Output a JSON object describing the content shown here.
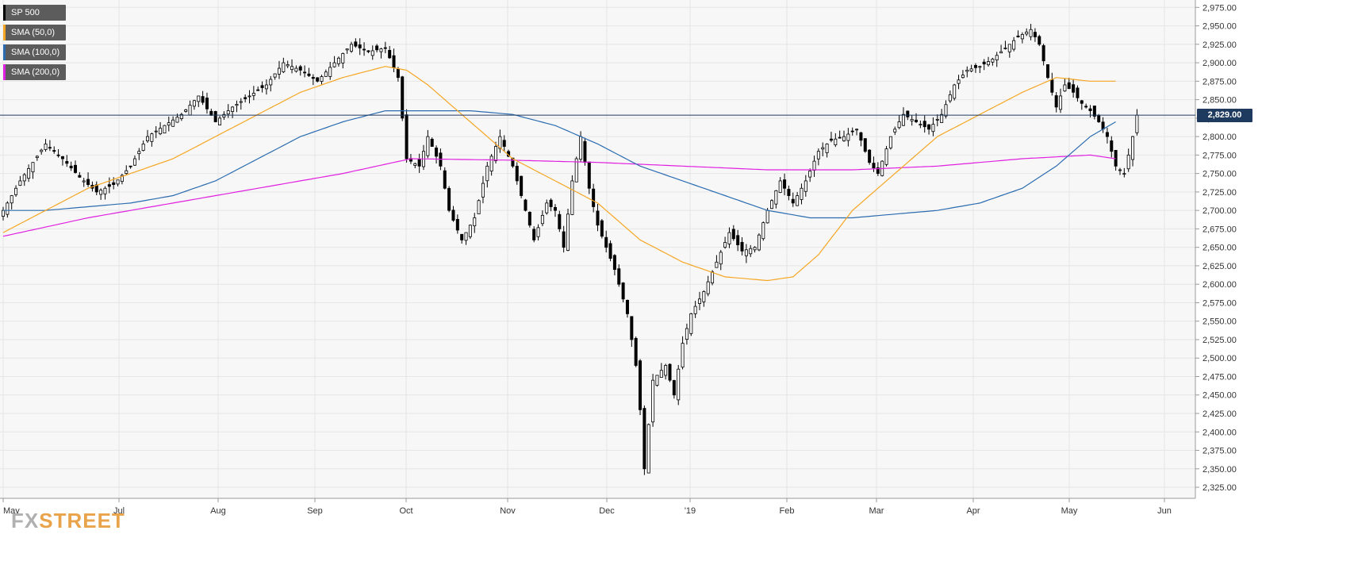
{
  "logo": {
    "fx": "FX",
    "street": "STREET"
  },
  "legend": [
    {
      "label": "SP 500",
      "color": "#000000"
    },
    {
      "label": "SMA (50,0)",
      "color": "#f5a623"
    },
    {
      "label": "SMA (100,0)",
      "color": "#2b6cb0"
    },
    {
      "label": "SMA (200,0)",
      "color": "#e020e0"
    }
  ],
  "current_price": {
    "label": "2,829.00",
    "value": 2829
  },
  "chart_data": {
    "type": "candlestick",
    "instrument": "SP 500",
    "timeframe": "daily",
    "y_ticks": [
      2325,
      2350,
      2375,
      2400,
      2425,
      2450,
      2475,
      2500,
      2525,
      2550,
      2575,
      2600,
      2625,
      2650,
      2675,
      2700,
      2725,
      2750,
      2775,
      2800,
      2825,
      2850,
      2875,
      2900,
      2925,
      2950,
      2975
    ],
    "y_tick_labels": [
      "2,325.00",
      "2,350.00",
      "2,375.00",
      "2,400.00",
      "2,425.00",
      "2,450.00",
      "2,475.00",
      "2,500.00",
      "2,525.00",
      "2,550.00",
      "2,575.00",
      "2,600.00",
      "2,625.00",
      "2,650.00",
      "2,675.00",
      "2,700.00",
      "2,725.00",
      "2,750.00",
      "2,775.00",
      "2,800.00",
      "2,825.00",
      "2,850.00",
      "2,875.00",
      "2,900.00",
      "2,925.00",
      "2,950.00",
      "2,975.00"
    ],
    "ylim": [
      2310,
      2985
    ],
    "x_ticks": [
      "May",
      "Jul",
      "Aug",
      "Sep",
      "Oct",
      "Nov",
      "Dec",
      "'19",
      "Feb",
      "Mar",
      "Apr",
      "May",
      "Jun"
    ],
    "grid": true,
    "series_close_path": [
      [
        0,
        2700
      ],
      [
        4,
        2740
      ],
      [
        10,
        2790
      ],
      [
        14,
        2770
      ],
      [
        18,
        2745
      ],
      [
        22,
        2725
      ],
      [
        26,
        2735
      ],
      [
        30,
        2760
      ],
      [
        34,
        2800
      ],
      [
        38,
        2815
      ],
      [
        42,
        2830
      ],
      [
        46,
        2855
      ],
      [
        50,
        2820
      ],
      [
        54,
        2840
      ],
      [
        58,
        2855
      ],
      [
        62,
        2870
      ],
      [
        66,
        2900
      ],
      [
        70,
        2890
      ],
      [
        74,
        2875
      ],
      [
        78,
        2900
      ],
      [
        82,
        2925
      ],
      [
        86,
        2915
      ],
      [
        90,
        2920
      ],
      [
        93,
        2880
      ],
      [
        95,
        2770
      ],
      [
        98,
        2760
      ],
      [
        100,
        2800
      ],
      [
        103,
        2760
      ],
      [
        105,
        2700
      ],
      [
        108,
        2660
      ],
      [
        111,
        2690
      ],
      [
        114,
        2760
      ],
      [
        117,
        2800
      ],
      [
        120,
        2760
      ],
      [
        123,
        2700
      ],
      [
        125,
        2660
      ],
      [
        128,
        2710
      ],
      [
        130,
        2700
      ],
      [
        132,
        2650
      ],
      [
        134,
        2740
      ],
      [
        136,
        2800
      ],
      [
        138,
        2730
      ],
      [
        140,
        2680
      ],
      [
        142,
        2650
      ],
      [
        144,
        2620
      ],
      [
        147,
        2560
      ],
      [
        149,
        2490
      ],
      [
        150,
        2430
      ],
      [
        151,
        2350
      ],
      [
        153,
        2470
      ],
      [
        156,
        2490
      ],
      [
        158,
        2450
      ],
      [
        160,
        2520
      ],
      [
        162,
        2560
      ],
      [
        165,
        2590
      ],
      [
        168,
        2630
      ],
      [
        171,
        2670
      ],
      [
        174,
        2645
      ],
      [
        177,
        2650
      ],
      [
        180,
        2700
      ],
      [
        183,
        2740
      ],
      [
        186,
        2710
      ],
      [
        189,
        2740
      ],
      [
        192,
        2780
      ],
      [
        195,
        2795
      ],
      [
        198,
        2800
      ],
      [
        201,
        2810
      ],
      [
        204,
        2765
      ],
      [
        206,
        2750
      ],
      [
        209,
        2800
      ],
      [
        212,
        2830
      ],
      [
        215,
        2820
      ],
      [
        218,
        2810
      ],
      [
        221,
        2830
      ],
      [
        224,
        2870
      ],
      [
        227,
        2890
      ],
      [
        230,
        2895
      ],
      [
        233,
        2905
      ],
      [
        236,
        2920
      ],
      [
        239,
        2935
      ],
      [
        242,
        2945
      ],
      [
        244,
        2925
      ],
      [
        246,
        2880
      ],
      [
        248,
        2840
      ],
      [
        250,
        2870
      ],
      [
        252,
        2860
      ],
      [
        254,
        2845
      ],
      [
        256,
        2835
      ],
      [
        258,
        2820
      ],
      [
        260,
        2800
      ],
      [
        262,
        2760
      ],
      [
        264,
        2750
      ],
      [
        266,
        2800
      ],
      [
        267,
        2829
      ]
    ],
    "sma50_path": [
      [
        0,
        2670
      ],
      [
        10,
        2700
      ],
      [
        20,
        2730
      ],
      [
        30,
        2750
      ],
      [
        40,
        2770
      ],
      [
        50,
        2800
      ],
      [
        60,
        2830
      ],
      [
        70,
        2860
      ],
      [
        80,
        2880
      ],
      [
        90,
        2895
      ],
      [
        95,
        2890
      ],
      [
        100,
        2870
      ],
      [
        110,
        2820
      ],
      [
        120,
        2770
      ],
      [
        130,
        2740
      ],
      [
        140,
        2710
      ],
      [
        150,
        2660
      ],
      [
        160,
        2630
      ],
      [
        170,
        2610
      ],
      [
        180,
        2605
      ],
      [
        186,
        2610
      ],
      [
        192,
        2640
      ],
      [
        200,
        2700
      ],
      [
        210,
        2750
      ],
      [
        220,
        2800
      ],
      [
        230,
        2830
      ],
      [
        240,
        2860
      ],
      [
        248,
        2880
      ],
      [
        256,
        2875
      ],
      [
        262,
        2875
      ]
    ],
    "sma100_path": [
      [
        0,
        2700
      ],
      [
        10,
        2700
      ],
      [
        20,
        2705
      ],
      [
        30,
        2710
      ],
      [
        40,
        2720
      ],
      [
        50,
        2740
      ],
      [
        60,
        2770
      ],
      [
        70,
        2800
      ],
      [
        80,
        2820
      ],
      [
        90,
        2835
      ],
      [
        96,
        2835
      ],
      [
        110,
        2835
      ],
      [
        120,
        2830
      ],
      [
        130,
        2815
      ],
      [
        140,
        2790
      ],
      [
        150,
        2760
      ],
      [
        160,
        2740
      ],
      [
        170,
        2720
      ],
      [
        180,
        2700
      ],
      [
        190,
        2690
      ],
      [
        200,
        2690
      ],
      [
        210,
        2695
      ],
      [
        220,
        2700
      ],
      [
        230,
        2710
      ],
      [
        240,
        2730
      ],
      [
        248,
        2760
      ],
      [
        256,
        2800
      ],
      [
        262,
        2820
      ]
    ],
    "sma200_path": [
      [
        0,
        2665
      ],
      [
        20,
        2690
      ],
      [
        40,
        2710
      ],
      [
        60,
        2730
      ],
      [
        80,
        2750
      ],
      [
        96,
        2770
      ],
      [
        120,
        2768
      ],
      [
        140,
        2765
      ],
      [
        160,
        2760
      ],
      [
        180,
        2755
      ],
      [
        200,
        2755
      ],
      [
        220,
        2760
      ],
      [
        240,
        2770
      ],
      [
        256,
        2775
      ],
      [
        262,
        2770
      ]
    ]
  }
}
